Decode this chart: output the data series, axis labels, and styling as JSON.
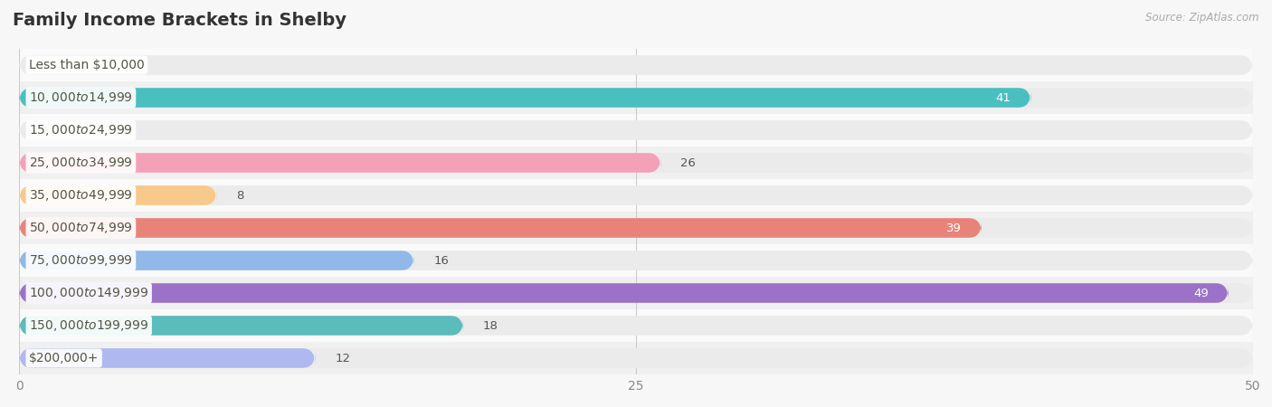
{
  "title": "Family Income Brackets in Shelby",
  "source": "Source: ZipAtlas.com",
  "categories": [
    "Less than $10,000",
    "$10,000 to $14,999",
    "$15,000 to $24,999",
    "$25,000 to $34,999",
    "$35,000 to $49,999",
    "$50,000 to $74,999",
    "$75,000 to $99,999",
    "$100,000 to $149,999",
    "$150,000 to $199,999",
    "$200,000+"
  ],
  "values": [
    0,
    41,
    0,
    26,
    8,
    39,
    16,
    49,
    18,
    12
  ],
  "bar_colors": [
    "#c9aed6",
    "#4abfbf",
    "#aab4e8",
    "#f4a0b8",
    "#f7c98a",
    "#e8837a",
    "#90b8e8",
    "#9b72c8",
    "#5bbcbc",
    "#b0b8f0"
  ],
  "xlim": [
    0,
    50
  ],
  "xticks": [
    0,
    25,
    50
  ],
  "background_color": "#f7f7f7",
  "bar_background_color": "#ebebeb",
  "row_bg_even": "#f0f0f0",
  "row_bg_odd": "#fafafa",
  "title_fontsize": 14,
  "label_fontsize": 10,
  "value_fontsize": 9.5,
  "bar_height": 0.6
}
